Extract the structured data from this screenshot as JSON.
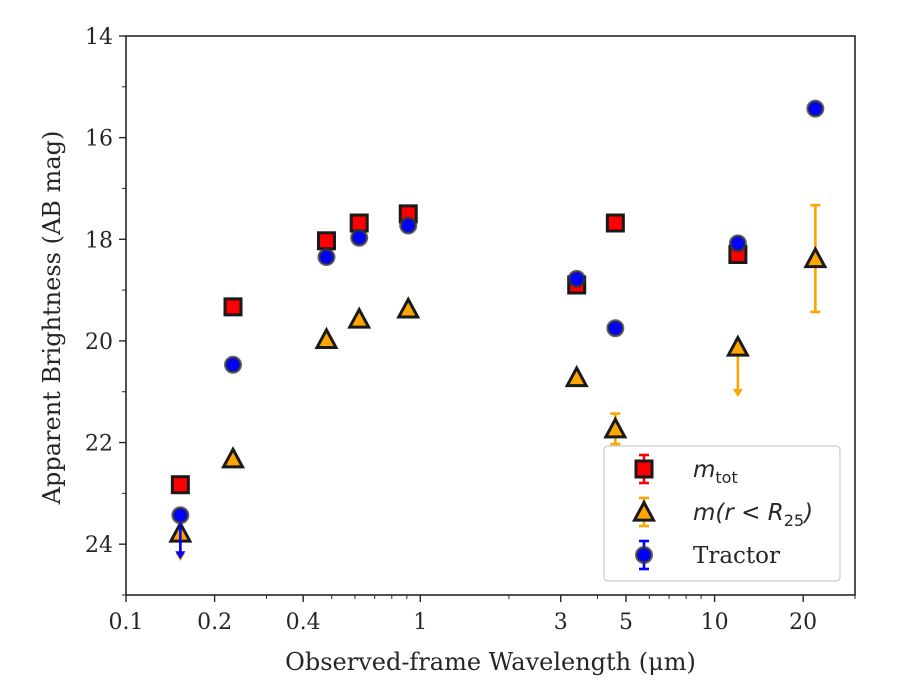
{
  "chart_data": {
    "type": "scatter",
    "xlabel": "Observed-frame Wavelength (μm)",
    "ylabel": "Apparent Brightness (AB mag)",
    "xscale": "log",
    "xlim": [
      0.1,
      30
    ],
    "ylim": [
      25,
      14
    ],
    "y_inverted": true,
    "x_ticks": [
      {
        "value": 0.1,
        "label": "0.1"
      },
      {
        "value": 0.2,
        "label": "0.2"
      },
      {
        "value": 0.4,
        "label": "0.4"
      },
      {
        "value": 1,
        "label": "1"
      },
      {
        "value": 3,
        "label": "3"
      },
      {
        "value": 5,
        "label": "5"
      },
      {
        "value": 10,
        "label": "10"
      },
      {
        "value": 20,
        "label": "20"
      }
    ],
    "y_ticks": [
      {
        "value": 14,
        "label": "14"
      },
      {
        "value": 16,
        "label": "16"
      },
      {
        "value": 18,
        "label": "18"
      },
      {
        "value": 20,
        "label": "20"
      },
      {
        "value": 22,
        "label": "22"
      },
      {
        "value": 24,
        "label": "24"
      }
    ],
    "grid": false,
    "legend_position": "lower-right",
    "series": [
      {
        "name": "m_tot",
        "legend_main": "m",
        "legend_sub": "tot",
        "marker": "square",
        "color": "#ff0000",
        "edge_color": "#1a1a1a",
        "points": [
          {
            "x": 0.153,
            "y": 22.83
          },
          {
            "x": 0.231,
            "y": 19.33
          },
          {
            "x": 0.48,
            "y": 18.03
          },
          {
            "x": 0.62,
            "y": 17.68
          },
          {
            "x": 0.91,
            "y": 17.5
          },
          {
            "x": 3.4,
            "y": 18.9
          },
          {
            "x": 4.6,
            "y": 17.68
          },
          {
            "x": 12.0,
            "y": 18.3
          }
        ]
      },
      {
        "name": "m(r < R25)",
        "legend_main": "m(r < R",
        "legend_sub": "25",
        "legend_suffix": ")",
        "marker": "triangle",
        "color": "#ffa500",
        "edge_color": "#1a1a1a",
        "points": [
          {
            "x": 0.153,
            "y": 23.78,
            "upper_limit": true
          },
          {
            "x": 0.231,
            "y": 22.32
          },
          {
            "x": 0.48,
            "y": 19.97
          },
          {
            "x": 0.62,
            "y": 19.57
          },
          {
            "x": 0.91,
            "y": 19.37
          },
          {
            "x": 3.4,
            "y": 20.72
          },
          {
            "x": 4.6,
            "y": 21.73,
            "err": 0.3
          },
          {
            "x": 12.0,
            "y": 20.12,
            "upper_limit": true
          },
          {
            "x": 22.0,
            "y": 18.38,
            "err": 1.05
          }
        ]
      },
      {
        "name": "Tractor",
        "marker": "circle",
        "color": "#0000ff",
        "edge_color": "#333333",
        "points": [
          {
            "x": 0.153,
            "y": 23.43,
            "upper_limit": true
          },
          {
            "x": 0.231,
            "y": 20.47
          },
          {
            "x": 0.48,
            "y": 18.35
          },
          {
            "x": 0.62,
            "y": 17.97
          },
          {
            "x": 0.91,
            "y": 17.73
          },
          {
            "x": 3.4,
            "y": 18.78
          },
          {
            "x": 4.6,
            "y": 19.75
          },
          {
            "x": 12.0,
            "y": 18.08
          },
          {
            "x": 22.0,
            "y": 15.43
          }
        ]
      }
    ]
  }
}
